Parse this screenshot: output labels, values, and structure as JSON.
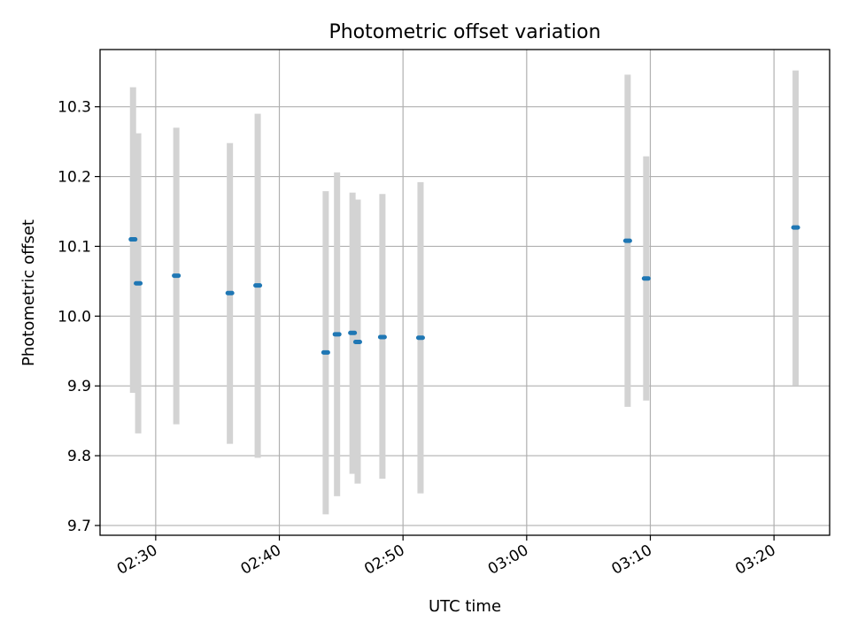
{
  "chart_data": {
    "type": "scatter",
    "title": "Photometric offset variation",
    "xlabel": "UTC time",
    "ylabel": "Photometric offset",
    "x_tick_labels": [
      "02:30",
      "02:40",
      "02:50",
      "03:00",
      "03:10",
      "03:20"
    ],
    "y_tick_labels": [
      "9.7",
      "9.8",
      "9.9",
      "10.0",
      "10.1",
      "10.2",
      "10.3"
    ],
    "y_ticks": [
      9.7,
      9.8,
      9.9,
      10.0,
      10.1,
      10.2,
      10.3
    ],
    "xlim": [
      "02:25:30",
      "03:24:30"
    ],
    "ylim": [
      9.686,
      10.382
    ],
    "grid": true,
    "marker_color": "#1f77b4",
    "errorbar_color": "#d3d3d3",
    "points": [
      {
        "time": "02:28:10",
        "y": 10.11,
        "err_low": 9.89,
        "err_high": 10.328
      },
      {
        "time": "02:28:35",
        "y": 10.047,
        "err_low": 9.832,
        "err_high": 10.262
      },
      {
        "time": "02:31:40",
        "y": 10.058,
        "err_low": 9.845,
        "err_high": 10.27
      },
      {
        "time": "02:36:00",
        "y": 10.033,
        "err_low": 9.817,
        "err_high": 10.248
      },
      {
        "time": "02:38:15",
        "y": 10.044,
        "err_low": 9.797,
        "err_high": 10.29
      },
      {
        "time": "02:43:45",
        "y": 9.948,
        "err_low": 9.716,
        "err_high": 10.179
      },
      {
        "time": "02:44:40",
        "y": 9.974,
        "err_low": 9.742,
        "err_high": 10.206
      },
      {
        "time": "02:45:55",
        "y": 9.976,
        "err_low": 9.774,
        "err_high": 10.177
      },
      {
        "time": "02:46:20",
        "y": 9.963,
        "err_low": 9.76,
        "err_high": 10.167
      },
      {
        "time": "02:48:20",
        "y": 9.97,
        "err_low": 9.767,
        "err_high": 10.175
      },
      {
        "time": "02:51:25",
        "y": 9.969,
        "err_low": 9.746,
        "err_high": 10.192
      },
      {
        "time": "03:08:10",
        "y": 10.108,
        "err_low": 9.87,
        "err_high": 10.346
      },
      {
        "time": "03:09:40",
        "y": 10.054,
        "err_low": 9.879,
        "err_high": 10.229
      },
      {
        "time": "03:21:45",
        "y": 10.127,
        "err_low": 9.901,
        "err_high": 10.352
      }
    ]
  }
}
